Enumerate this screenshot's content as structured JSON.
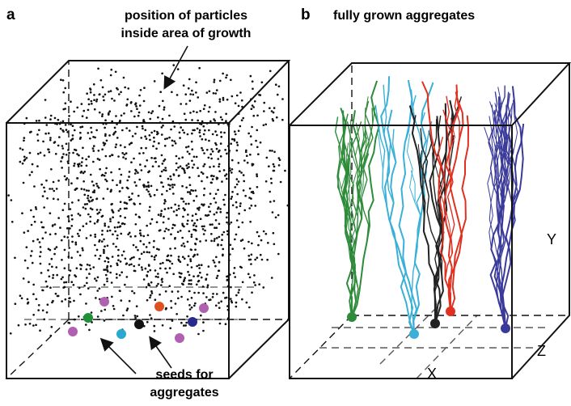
{
  "panel_a": {
    "label": "a",
    "annotation_top": [
      "position of particles",
      "inside area of growth"
    ],
    "annotation_bottom": [
      "seeds for",
      "aggregates"
    ]
  },
  "panel_b": {
    "label": "b",
    "title": "fully grown aggregates",
    "axes": {
      "x": "X",
      "y": "Y",
      "z": "Z"
    }
  }
}
